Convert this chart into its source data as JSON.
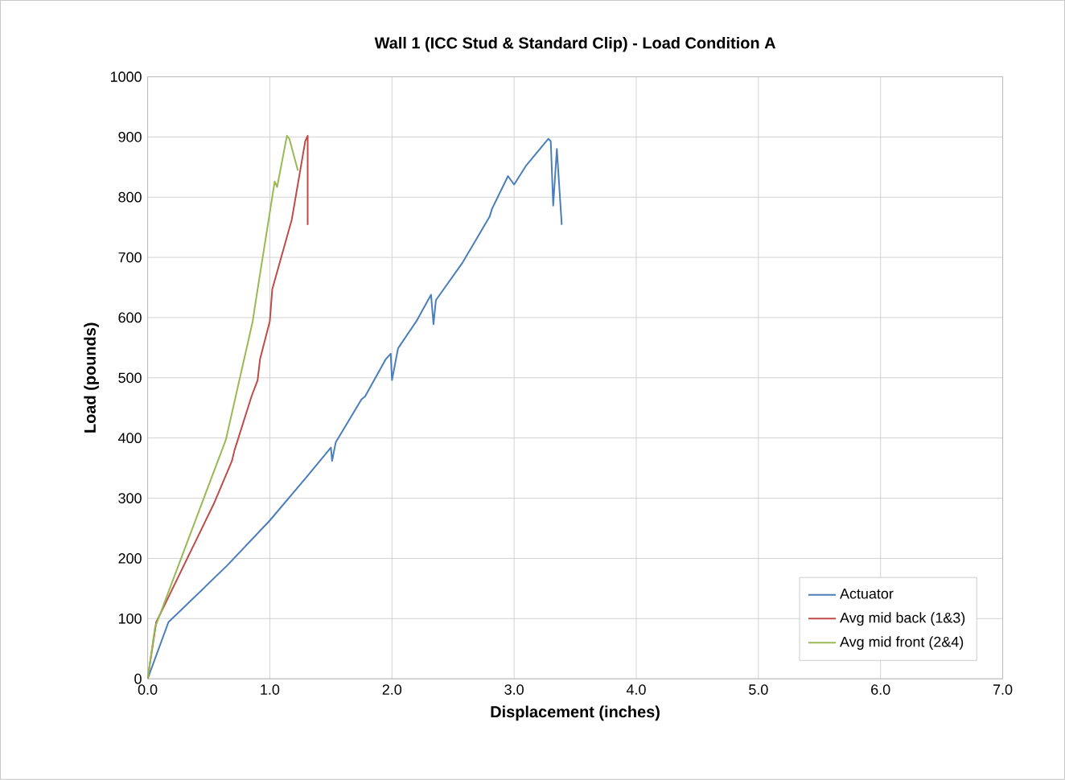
{
  "chart_data": {
    "type": "line",
    "title": "Wall 1 (ICC Stud & Standard Clip) - Load Condition A",
    "xlabel": "Displacement (inches)",
    "ylabel": "Load (pounds)",
    "xlim": [
      0,
      7
    ],
    "ylim": [
      0,
      1000
    ],
    "xticks": [
      {
        "value": 0,
        "label": "0.0"
      },
      {
        "value": 1,
        "label": "1.0"
      },
      {
        "value": 2,
        "label": "2.0"
      },
      {
        "value": 3,
        "label": "3.0"
      },
      {
        "value": 4,
        "label": "4.0"
      },
      {
        "value": 5,
        "label": "5.0"
      },
      {
        "value": 6,
        "label": "6.0"
      },
      {
        "value": 7,
        "label": "7.0"
      }
    ],
    "yticks": [
      0,
      100,
      200,
      300,
      400,
      500,
      600,
      700,
      800,
      900,
      1000
    ],
    "grid": true,
    "legend": "bottom right",
    "marker": "none",
    "line_style": "solid",
    "series": [
      {
        "name": "Actuator",
        "color": "#4a7ebb",
        "x": [
          0,
          0.17,
          0.65,
          1.0,
          1.3,
          1.5,
          1.51,
          1.54,
          1.75,
          1.78,
          1.95,
          1.99,
          2.0,
          2.05,
          2.2,
          2.32,
          2.34,
          2.36,
          2.58,
          2.8,
          2.82,
          2.95,
          3.0,
          3.1,
          3.28,
          3.3,
          3.32,
          3.35,
          3.39
        ],
        "values": [
          0,
          94,
          188,
          263,
          335,
          384,
          362,
          393,
          464,
          469,
          531,
          540,
          496,
          549,
          594,
          638,
          589,
          629,
          692,
          768,
          781,
          835,
          821,
          853,
          897,
          893,
          786,
          880,
          754
        ]
      },
      {
        "name": "Avg mid back (1&3)",
        "color": "#be4b48",
        "x": [
          0,
          0.07,
          0.54,
          0.69,
          0.71,
          0.85,
          0.9,
          0.92,
          1.0,
          1.02,
          1.18,
          1.29,
          1.31,
          1.31
        ],
        "values": [
          0,
          94,
          290,
          362,
          379,
          469,
          496,
          531,
          594,
          647,
          763,
          893,
          902,
          754
        ]
      },
      {
        "name": "Avg mid front (2&4)",
        "color": "#98b954",
        "x": [
          0,
          0.06,
          0.64,
          0.86,
          0.88,
          1.04,
          1.06,
          1.14,
          1.16,
          1.23
        ],
        "values": [
          0,
          85,
          397,
          594,
          621,
          826,
          817,
          902,
          897,
          844
        ]
      }
    ]
  }
}
